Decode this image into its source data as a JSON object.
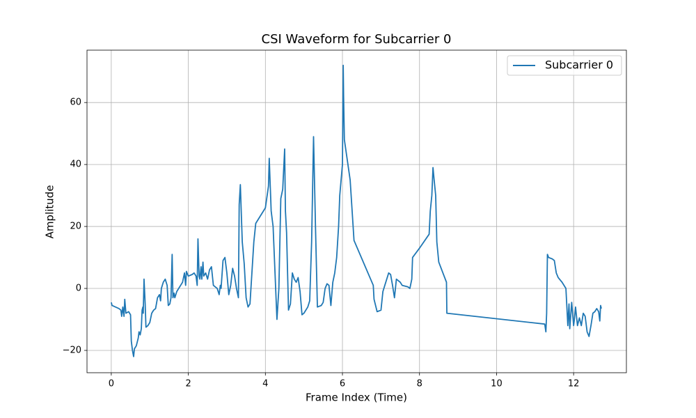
{
  "chart_data": {
    "type": "line",
    "title": "CSI Waveform for Subcarrier 0",
    "x_label": "Frame Index (Time)",
    "y_label": "Amplitude",
    "xlim": [
      -0.63,
      13.37
    ],
    "ylim": [
      -27.2,
      76.9
    ],
    "xticks": [
      0,
      2,
      4,
      6,
      8,
      10,
      12
    ],
    "yticks": [
      {
        "value": -20,
        "label": "−20"
      },
      0,
      20,
      40,
      60
    ],
    "grid": true,
    "legend": "upper right",
    "x": [
      0,
      0.02,
      0.2,
      0.25,
      0.27,
      0.3,
      0.33,
      0.35,
      0.38,
      0.45,
      0.5,
      0.52,
      0.55,
      0.58,
      0.6,
      0.65,
      0.7,
      0.72,
      0.75,
      0.78,
      0.8,
      0.82,
      0.83,
      0.85,
      0.88,
      0.9,
      0.95,
      1.0,
      1.05,
      1.1,
      1.15,
      1.2,
      1.25,
      1.28,
      1.3,
      1.35,
      1.4,
      1.45,
      1.48,
      1.52,
      1.55,
      1.58,
      1.6,
      1.63,
      1.65,
      1.7,
      1.75,
      1.8,
      1.85,
      1.9,
      1.93,
      1.95,
      2.0,
      2.1,
      2.15,
      2.2,
      2.23,
      2.25,
      2.28,
      2.3,
      2.33,
      2.35,
      2.38,
      2.4,
      2.45,
      2.5,
      2.55,
      2.6,
      2.65,
      2.7,
      2.75,
      2.8,
      2.83,
      2.85,
      2.9,
      2.95,
      3.0,
      3.05,
      3.1,
      3.15,
      3.2,
      3.25,
      3.3,
      3.32,
      3.35,
      3.4,
      3.45,
      3.5,
      3.55,
      3.6,
      3.65,
      3.7,
      3.75,
      4.0,
      4.08,
      4.1,
      4.15,
      4.2,
      4.25,
      4.3,
      4.35,
      4.4,
      4.45,
      4.5,
      4.52,
      4.55,
      4.6,
      4.65,
      4.7,
      4.75,
      4.8,
      4.85,
      4.9,
      4.95,
      5.0,
      5.1,
      5.15,
      5.2,
      5.25,
      5.3,
      5.35,
      5.45,
      5.5,
      5.55,
      5.6,
      5.65,
      5.7,
      5.75,
      5.8,
      5.85,
      5.9,
      5.93,
      6.0,
      6.02,
      6.03,
      6.05,
      6.2,
      6.3,
      6.8,
      6.82,
      6.9,
      7.0,
      7.05,
      7.1,
      7.2,
      7.25,
      7.3,
      7.35,
      7.4,
      7.5,
      7.55,
      7.7,
      7.75,
      7.8,
      7.82,
      8.0,
      8.25,
      8.28,
      8.32,
      8.35,
      8.38,
      8.42,
      8.45,
      8.5,
      8.7,
      8.71,
      11.25,
      11.28,
      11.3,
      11.32,
      11.35,
      11.45,
      11.5,
      11.55,
      11.6,
      11.7,
      11.8,
      11.85,
      11.88,
      11.9,
      11.95,
      12.0,
      12.02,
      12.05,
      12.1,
      12.15,
      12.2,
      12.25,
      12.3,
      12.35,
      12.4,
      12.45,
      12.5,
      12.55,
      12.6,
      12.65,
      12.68,
      12.7,
      12.72
    ],
    "series": [
      {
        "name": "Subcarrier 0",
        "color": "#1f77b4",
        "values": [
          -4.5,
          -5.5,
          -6.5,
          -7,
          -9,
          -6,
          -9,
          -3.5,
          -8,
          -7.5,
          -8.5,
          -17,
          -20,
          -22,
          -19.5,
          -18.5,
          -16,
          -14,
          -15,
          -13,
          -7,
          -6,
          -8,
          3,
          -5,
          -12.5,
          -12,
          -11,
          -8,
          -7,
          -6.5,
          -3,
          -2,
          -4,
          0,
          2,
          3,
          1,
          -5.5,
          -5,
          -3,
          11,
          -3,
          -1.5,
          -3,
          -1,
          0,
          1,
          2,
          5,
          1,
          5.5,
          4,
          4.5,
          5,
          4,
          1,
          16,
          4,
          3,
          7,
          3,
          8.5,
          4,
          5,
          3,
          6,
          7,
          1,
          0.5,
          0,
          -2,
          1,
          0,
          9,
          10,
          5,
          -2,
          1,
          6.5,
          4,
          0,
          -3,
          27,
          33.5,
          15,
          8,
          -3,
          -6,
          -5,
          5,
          15,
          21,
          26,
          33,
          42,
          25,
          20,
          5,
          -10,
          0,
          29,
          32,
          45,
          25,
          18,
          -7,
          -5,
          5,
          3,
          2,
          3.5,
          -1,
          -8.5,
          -8,
          -6,
          -4,
          15,
          49,
          20,
          -6,
          -5.5,
          -4.5,
          0,
          1.5,
          1,
          -5.5,
          2,
          5,
          10,
          20,
          30,
          40,
          72,
          62,
          48,
          35,
          15.5,
          1,
          -3.5,
          -7.5,
          -7,
          -1,
          1,
          5,
          4.5,
          1,
          -3,
          3,
          2,
          1,
          0.5,
          0,
          3,
          10,
          13,
          17.5,
          25,
          30,
          39,
          35,
          30,
          15,
          8.5,
          2,
          -8,
          -11.5,
          -14,
          -8,
          11,
          10,
          9.5,
          9,
          5,
          3.5,
          2,
          0,
          -12,
          -5,
          -13,
          -4.5,
          -12,
          -10,
          -6,
          -12,
          -9.5,
          -12,
          -8,
          -9,
          -14,
          -15.5,
          -12,
          -8,
          -7.5,
          -6.5,
          -7.5,
          -10.5,
          -5.5,
          -6.5
        ]
      }
    ]
  }
}
